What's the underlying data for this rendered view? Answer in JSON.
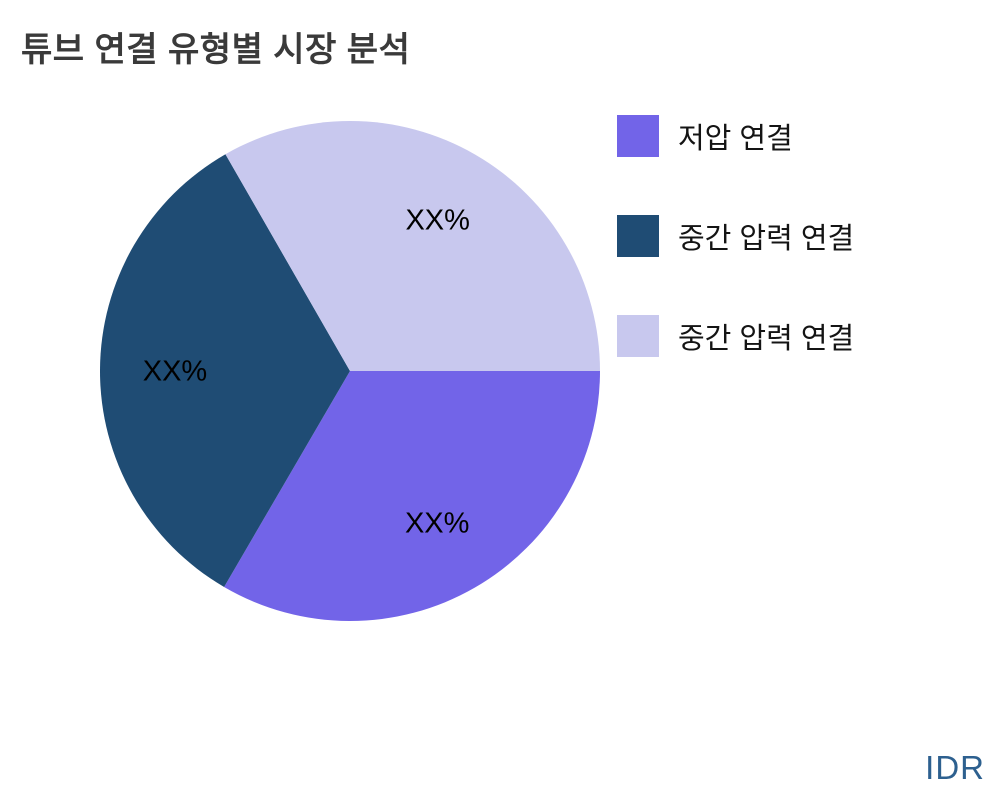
{
  "title": "튜브 연결 유형별 시장 분석",
  "watermark": "IDR",
  "chart_data": {
    "type": "pie",
    "title": "튜브 연결 유형별 시장 분석",
    "slices": [
      {
        "label": "저압 연결",
        "value": 33.4,
        "pct_label": "XX%",
        "color": "#7264e8"
      },
      {
        "label": "중간 압력 연결",
        "value": 33.3,
        "pct_label": "XX%",
        "color": "#1f4c74"
      },
      {
        "label": "중간 압력 연결",
        "value": 33.3,
        "pct_label": "XX%",
        "color": "#c8c8ee"
      }
    ],
    "start_angle_deg": 0,
    "direction": "clockwise",
    "legend_position": "right",
    "pct_label_color": "#000000",
    "pct_distance": 0.7,
    "background_color": "#ffffff"
  }
}
